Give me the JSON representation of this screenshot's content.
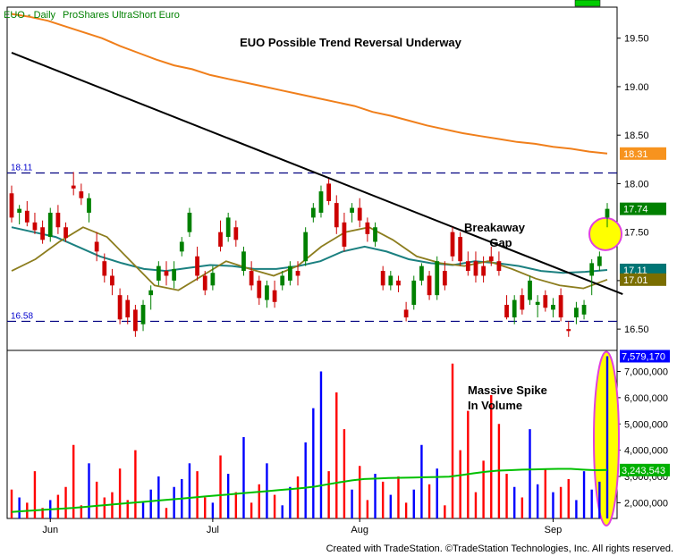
{
  "header": {
    "symbol_label": "EUO - Daily",
    "name_label": "ProShares UltraShort Euro"
  },
  "footer": {
    "copyright": "Created with TradeStation. ©TradeStation Technologies, Inc. All rights reserved."
  },
  "chart_data": [
    {
      "type": "candlestick",
      "title": "EUO Possible Trend Reversal Underway",
      "x_labels": [
        "Jun",
        "Jul",
        "Aug",
        "Sep"
      ],
      "y_ticks": [
        16.5,
        17.0,
        17.5,
        18.0,
        18.5,
        19.0,
        19.5
      ],
      "y_tick_labels": [
        "16.50",
        "17.00",
        "17.50",
        "18.00",
        "18.50",
        "19.00",
        "19.50"
      ],
      "ylim": [
        16.28,
        19.82
      ],
      "horizontal_levels": [
        {
          "value": 18.11,
          "label": "18.11"
        },
        {
          "value": 16.58,
          "label": "16.58"
        }
      ],
      "last_value_badges": [
        {
          "label": "18.31",
          "value": 18.31,
          "color": "#f7931e"
        },
        {
          "label": "17.74",
          "value": 17.74,
          "color": "#008000"
        },
        {
          "label": "17.11",
          "value": 17.11,
          "color": "#007575"
        },
        {
          "label": "17.01",
          "value": 17.01,
          "color": "#7a6e00"
        }
      ],
      "annotations": {
        "gap_label_line1": "Breakaway",
        "gap_label_line2": "Gap"
      },
      "colors": {
        "up": "#008000",
        "down": "#cc0000",
        "ma_long": "#f07f1b",
        "ma_mid": "#1b8080",
        "ma_short": "#8c7d1e",
        "trendline": "#000000",
        "highlight": "#ffff00",
        "highlight_border": "#e040e0"
      },
      "candles": [
        [
          17.9,
          17.98,
          17.6,
          17.65
        ],
        [
          17.7,
          17.78,
          17.58,
          17.74
        ],
        [
          17.72,
          17.82,
          17.56,
          17.6
        ],
        [
          17.6,
          17.7,
          17.48,
          17.52
        ],
        [
          17.55,
          17.62,
          17.38,
          17.42
        ],
        [
          17.45,
          17.75,
          17.4,
          17.7
        ],
        [
          17.7,
          17.78,
          17.48,
          17.55
        ],
        [
          17.55,
          17.6,
          17.4,
          17.44
        ],
        [
          17.98,
          18.12,
          17.88,
          17.95
        ],
        [
          17.92,
          18.0,
          17.78,
          17.85
        ],
        [
          17.7,
          17.9,
          17.6,
          17.85
        ],
        [
          17.4,
          17.5,
          17.2,
          17.3
        ],
        [
          17.2,
          17.28,
          16.98,
          17.05
        ],
        [
          17.05,
          17.12,
          16.85,
          16.95
        ],
        [
          16.85,
          16.92,
          16.55,
          16.6
        ],
        [
          16.8,
          16.85,
          16.55,
          16.62
        ],
        [
          16.7,
          16.75,
          16.42,
          16.48
        ],
        [
          16.55,
          16.8,
          16.48,
          16.75
        ],
        [
          16.85,
          16.95,
          16.7,
          16.9
        ],
        [
          17.0,
          17.2,
          16.95,
          17.15
        ],
        [
          17.1,
          17.2,
          16.95,
          17.05
        ],
        [
          17.0,
          17.2,
          16.92,
          17.12
        ],
        [
          17.3,
          17.45,
          17.25,
          17.4
        ],
        [
          17.5,
          17.75,
          17.45,
          17.7
        ],
        [
          17.25,
          17.35,
          17.0,
          17.05
        ],
        [
          17.05,
          17.1,
          16.85,
          16.9
        ],
        [
          16.95,
          17.15,
          16.9,
          17.08
        ],
        [
          17.5,
          17.62,
          17.3,
          17.35
        ],
        [
          17.45,
          17.7,
          17.4,
          17.65
        ],
        [
          17.55,
          17.62,
          17.35,
          17.42
        ],
        [
          17.1,
          17.35,
          17.05,
          17.3
        ],
        [
          17.1,
          17.2,
          16.9,
          16.95
        ],
        [
          17.0,
          17.05,
          16.75,
          16.82
        ],
        [
          16.8,
          17.0,
          16.72,
          16.95
        ],
        [
          16.9,
          17.0,
          16.72,
          16.78
        ],
        [
          16.95,
          17.1,
          16.9,
          17.05
        ],
        [
          17.0,
          17.2,
          16.95,
          17.15
        ],
        [
          17.1,
          17.2,
          16.95,
          17.05
        ],
        [
          17.2,
          17.55,
          17.15,
          17.5
        ],
        [
          17.65,
          17.8,
          17.6,
          17.75
        ],
        [
          17.7,
          17.98,
          17.65,
          17.92
        ],
        [
          18.0,
          18.05,
          17.78,
          17.82
        ],
        [
          17.8,
          17.88,
          17.48,
          17.55
        ],
        [
          17.6,
          17.7,
          17.3,
          17.35
        ],
        [
          17.7,
          17.8,
          17.6,
          17.75
        ],
        [
          17.75,
          17.85,
          17.55,
          17.62
        ],
        [
          17.6,
          17.65,
          17.4,
          17.48
        ],
        [
          17.4,
          17.6,
          17.35,
          17.55
        ],
        [
          17.1,
          17.15,
          16.9,
          16.95
        ],
        [
          16.95,
          17.1,
          16.9,
          17.05
        ],
        [
          17.0,
          17.05,
          16.88,
          16.95
        ],
        [
          16.7,
          16.78,
          16.58,
          16.62
        ],
        [
          16.75,
          17.05,
          16.7,
          17.0
        ],
        [
          17.0,
          17.18,
          16.95,
          17.15
        ],
        [
          17.05,
          17.1,
          16.8,
          16.85
        ],
        [
          16.85,
          17.25,
          16.8,
          17.2
        ],
        [
          17.1,
          17.2,
          16.9,
          16.95
        ],
        [
          17.5,
          17.55,
          17.2,
          17.25
        ],
        [
          17.45,
          17.5,
          17.15,
          17.2
        ],
        [
          17.2,
          17.3,
          17.05,
          17.1
        ],
        [
          17.2,
          17.3,
          16.98,
          17.05
        ],
        [
          17.15,
          17.25,
          16.98,
          17.05
        ],
        [
          17.25,
          17.35,
          17.15,
          17.2
        ],
        [
          17.2,
          17.3,
          17.05,
          17.1
        ],
        [
          16.75,
          16.85,
          16.6,
          16.62
        ],
        [
          16.62,
          16.85,
          16.55,
          16.8
        ],
        [
          16.85,
          16.92,
          16.65,
          16.7
        ],
        [
          16.8,
          17.05,
          16.75,
          17.0
        ],
        [
          16.75,
          16.85,
          16.62,
          16.78
        ],
        [
          16.85,
          16.9,
          16.68,
          16.72
        ],
        [
          16.7,
          16.82,
          16.62,
          16.75
        ],
        [
          16.85,
          16.92,
          16.58,
          16.62
        ],
        [
          16.5,
          16.58,
          16.42,
          16.48
        ],
        [
          16.62,
          16.78,
          16.55,
          16.72
        ],
        [
          16.65,
          16.8,
          16.6,
          16.75
        ],
        [
          17.05,
          17.22,
          16.85,
          17.18
        ],
        [
          17.15,
          17.3,
          17.1,
          17.25
        ],
        [
          17.65,
          17.8,
          17.55,
          17.74
        ]
      ],
      "sma_long": [
        19.75,
        19.72,
        19.68,
        19.62,
        19.56,
        19.5,
        19.42,
        19.35,
        19.28,
        19.22,
        19.18,
        19.12,
        19.08,
        19.04,
        19.0,
        18.96,
        18.92,
        18.88,
        18.84,
        18.8,
        18.74,
        18.7,
        18.65,
        18.6,
        18.56,
        18.52,
        18.49,
        18.46,
        18.43,
        18.41,
        18.38,
        18.36,
        18.33,
        18.31
      ],
      "sma_mid": [
        17.55,
        17.5,
        17.45,
        17.35,
        17.25,
        17.18,
        17.12,
        17.1,
        17.13,
        17.16,
        17.15,
        17.12,
        17.12,
        17.15,
        17.2,
        17.3,
        17.35,
        17.3,
        17.22,
        17.18,
        17.16,
        17.2,
        17.18,
        17.15,
        17.1,
        17.08,
        17.09,
        17.11
      ],
      "sma_short": [
        17.1,
        17.22,
        17.4,
        17.55,
        17.45,
        17.2,
        16.95,
        16.9,
        17.05,
        17.2,
        17.12,
        17.05,
        17.15,
        17.35,
        17.5,
        17.55,
        17.42,
        17.25,
        17.18,
        17.15,
        17.2,
        17.12,
        17.02,
        16.95,
        16.92,
        17.01
      ],
      "trendline": {
        "start": {
          "x": 0,
          "y": 19.35
        },
        "end": {
          "x": 79,
          "y": 16.86
        }
      }
    },
    {
      "type": "bar",
      "title": "",
      "y_ticks": [
        2000000,
        3000000,
        4000000,
        5000000,
        6000000,
        7000000
      ],
      "y_tick_labels": [
        "2,000,000",
        "3,000,000",
        "4,000,000",
        "5,000,000",
        "6,000,000",
        "7,000,000"
      ],
      "ylim": [
        1400000,
        7800000
      ],
      "last_value_badges": [
        {
          "label": "7,579,170",
          "value": 7579170,
          "color": "#0000ff"
        },
        {
          "label": "3,243,543",
          "value": 3243543,
          "color": "#00b000"
        }
      ],
      "annotations": {
        "spike_label_line1": "Massive Spike",
        "spike_label_line2": "In Volume"
      },
      "colors": {
        "up": "#0000ff",
        "down": "#ff0000",
        "ma": "#00c000"
      },
      "volume_color_by_up": true,
      "volumes": [
        2500000,
        2200000,
        2000000,
        3200000,
        1800000,
        2100000,
        2300000,
        2600000,
        4200000,
        1900000,
        3500000,
        2800000,
        2200000,
        2400000,
        3300000,
        2100000,
        4000000,
        2000000,
        2500000,
        3000000,
        1800000,
        2600000,
        2900000,
        3500000,
        3200000,
        2200000,
        2000000,
        3800000,
        3100000,
        2400000,
        4500000,
        2000000,
        2700000,
        3500000,
        2300000,
        1900000,
        2600000,
        3000000,
        4300000,
        5600000,
        7000000,
        3200000,
        6200000,
        4800000,
        2500000,
        3400000,
        2100000,
        3100000,
        2800000,
        2300000,
        3000000,
        2000000,
        2500000,
        4200000,
        2700000,
        3300000,
        1900000,
        7300000,
        4000000,
        5500000,
        2400000,
        3600000,
        6100000,
        5000000,
        3100000,
        2600000,
        2200000,
        4800000,
        2700000,
        3300000,
        2400000,
        2600000,
        2900000,
        2100000,
        3200000,
        2500000,
        2800000,
        7579170
      ],
      "volume_ma": [
        1650000,
        1680000,
        1710000,
        1740000,
        1770000,
        1800000,
        1840000,
        1880000,
        1920000,
        1960000,
        2000000,
        2040000,
        2080000,
        2120000,
        2160000,
        2200000,
        2240000,
        2280000,
        2320000,
        2360000,
        2400000,
        2440000,
        2480000,
        2520000,
        2560000,
        2620000,
        2700000,
        2780000,
        2850000,
        2900000,
        2920000,
        2940000,
        2950000,
        2960000,
        2970000,
        2980000,
        2990000,
        3050000,
        3120000,
        3180000,
        3220000,
        3240000,
        3260000,
        3270000,
        3280000,
        3290000,
        3290000,
        3260000,
        3240000,
        3243543
      ]
    }
  ]
}
